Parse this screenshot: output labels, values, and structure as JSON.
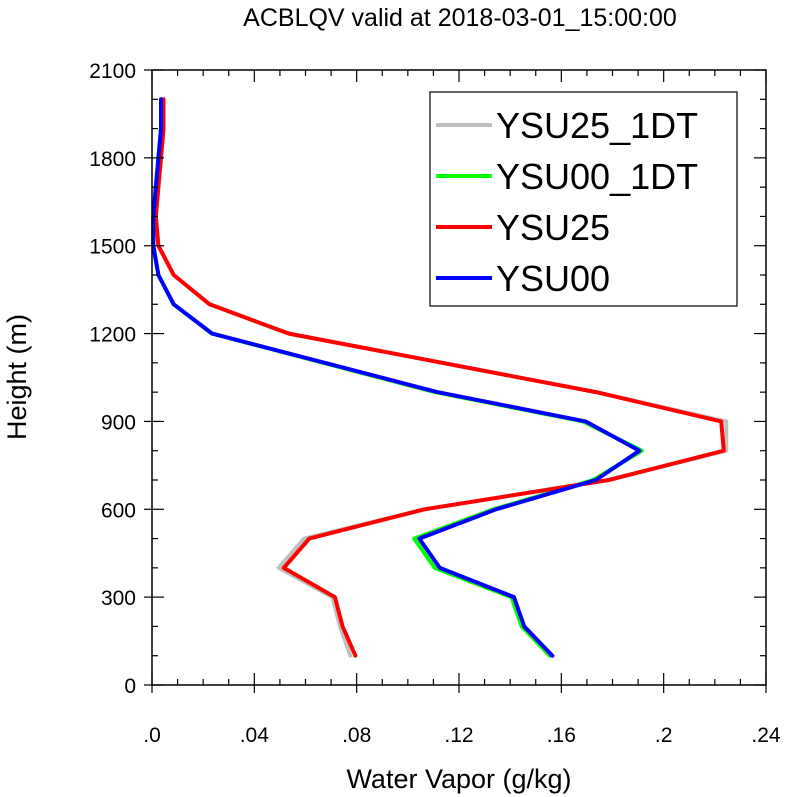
{
  "chart_data": {
    "type": "line",
    "title": "ACBLQV valid at 2018-03-01_15:00:00",
    "xlabel": "Water Vapor (g/kg)",
    "ylabel": "Height (m)",
    "xlim": [
      0,
      0.24
    ],
    "ylim": [
      0,
      2100
    ],
    "xticks": [
      0,
      0.04,
      0.08,
      0.12,
      0.16,
      0.2,
      0.24
    ],
    "xtick_labels": [
      ".0",
      ".04",
      ".08",
      ".12",
      ".16",
      ".2",
      ".24"
    ],
    "yticks": [
      0,
      300,
      600,
      900,
      1200,
      1500,
      1800,
      2100
    ],
    "ytick_labels": [
      "0",
      "300",
      "600",
      "900",
      "1200",
      "1500",
      "1800",
      "2100"
    ],
    "grid": false,
    "legend_position": "top-right",
    "series": [
      {
        "name": "YSU25_1DT",
        "color": "#c0c0c0",
        "y": [
          100,
          200,
          300,
          400,
          500,
          600,
          700,
          800,
          900,
          1000,
          1200,
          1300,
          1400,
          1500,
          1600,
          1700,
          1800,
          1900,
          2000
        ],
        "x": [
          0.0775,
          0.0735,
          0.0705,
          0.0495,
          0.0595,
          0.1065,
          0.1785,
          0.2245,
          0.2245,
          0.1735,
          0.0535,
          0.0225,
          0.0085,
          0.0025,
          0.0015,
          0.0025,
          0.0035,
          0.0045,
          0.0045
        ]
      },
      {
        "name": "YSU00_1DT",
        "color": "#00ff00",
        "y": [
          100,
          200,
          300,
          400,
          500,
          600,
          700,
          800,
          900,
          1000,
          1200,
          1300,
          1400,
          1500,
          1600,
          1700,
          1800,
          1900,
          2000
        ],
        "x": [
          0.1555,
          0.1445,
          0.1405,
          0.1105,
          0.1025,
          0.1335,
          0.1725,
          0.1915,
          0.1685,
          0.1105,
          0.0235,
          0.0085,
          0.0025,
          0.0005,
          0.0005,
          0.0015,
          0.0025,
          0.0035,
          0.0035
        ]
      },
      {
        "name": "YSU25",
        "color": "#ff0000",
        "y": [
          100,
          200,
          300,
          400,
          500,
          600,
          700,
          800,
          900,
          1000,
          1200,
          1300,
          1400,
          1500,
          1600,
          1700,
          1800,
          1900,
          2000
        ],
        "x": [
          0.0795,
          0.0745,
          0.0715,
          0.0515,
          0.0615,
          0.1065,
          0.1785,
          0.2235,
          0.2225,
          0.1735,
          0.0535,
          0.0225,
          0.0085,
          0.0025,
          0.0015,
          0.0025,
          0.0035,
          0.0045,
          0.0045
        ]
      },
      {
        "name": "YSU00",
        "color": "#0000ff",
        "y": [
          100,
          200,
          300,
          400,
          500,
          600,
          700,
          800,
          900,
          1000,
          1200,
          1300,
          1400,
          1500,
          1600,
          1700,
          1800,
          1900,
          2000
        ],
        "x": [
          0.1565,
          0.1455,
          0.1415,
          0.1125,
          0.1045,
          0.1345,
          0.1735,
          0.1905,
          0.1695,
          0.1115,
          0.0235,
          0.0085,
          0.0025,
          0.0005,
          0.0005,
          0.0015,
          0.0025,
          0.0035,
          0.0035
        ]
      }
    ]
  }
}
